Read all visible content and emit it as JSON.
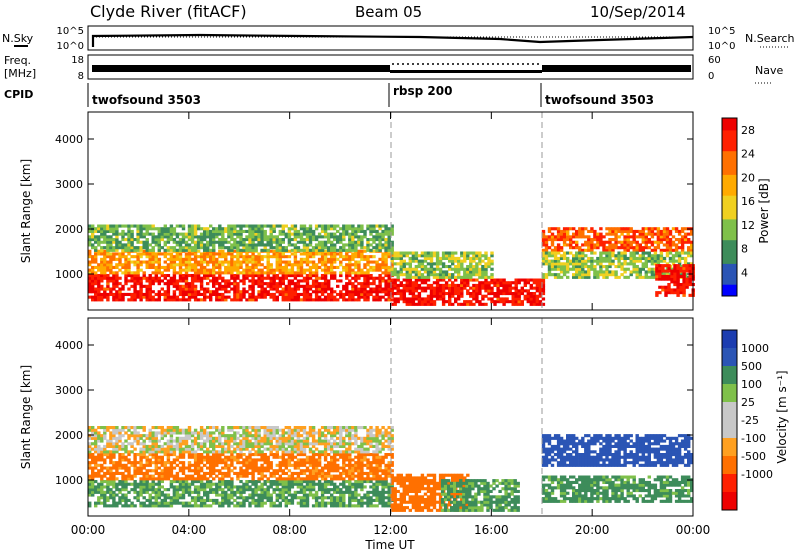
{
  "header": {
    "station": "Clyde River (fitACF)",
    "beam": "Beam 05",
    "date": "10/Sep/2014"
  },
  "labels": {
    "nsky": "N.Sky",
    "nsearch": "N.Search",
    "freq_line1": "Freq.",
    "freq_line2": "[MHz]",
    "nave": "Nave",
    "cpid": "CPID",
    "ylabel": "Slant Range [km]",
    "xlabel": "Time UT",
    "power_label": "Power [dB]",
    "velocity_label": "Velocity [m s⁻¹]"
  },
  "noise_panel": {
    "left_ticks": [
      "10^5",
      "10^0"
    ],
    "right_ticks": [
      "10^5",
      "10^0"
    ]
  },
  "freq_panel": {
    "left_ticks": [
      "18",
      "8"
    ],
    "right_ticks": [
      "60",
      "0"
    ]
  },
  "cpid_segments": [
    {
      "label": "twofsound 3503",
      "start_hour": 0
    },
    {
      "label": "rbsp 200",
      "start_hour": 12
    },
    {
      "label": "twofsound 3503",
      "start_hour": 18
    }
  ],
  "colors": {
    "power": [
      "#0000ff",
      "#2b55b5",
      "#3d8c5a",
      "#7fc04a",
      "#f0d020",
      "#ffaa00",
      "#ff7000",
      "#ff2000",
      "#ee0000"
    ],
    "velocity": [
      "#ee0000",
      "#ff2000",
      "#ff7000",
      "#ffa020",
      "#c8c8c8",
      "#c8c8c8",
      "#7fc04a",
      "#3d8c5a",
      "#2b55b5",
      "#1c3db0"
    ]
  },
  "chart_data": [
    {
      "type": "heatmap",
      "name": "Power",
      "xlabel": "Time UT",
      "ylabel": "Slant Range [km]",
      "xlim": [
        0,
        24
      ],
      "ylim": [
        200,
        4600
      ],
      "x_ticks": [
        "00:00",
        "04:00",
        "08:00",
        "12:00",
        "16:00",
        "20:00",
        "00:00"
      ],
      "y_ticks": [
        1000,
        2000,
        3000,
        4000
      ],
      "colorbar": {
        "label": "Power [dB]",
        "range": [
          0,
          30
        ],
        "ticks": [
          4,
          8,
          12,
          16,
          20,
          24,
          28
        ]
      },
      "bands": [
        {
          "t0": 0,
          "t1": 12,
          "r0": 400,
          "r1": 1000,
          "value": 28
        },
        {
          "t0": 0,
          "t1": 12,
          "r0": 1000,
          "r1": 1500,
          "value": 20
        },
        {
          "t0": 0,
          "t1": 12,
          "r0": 1500,
          "r1": 2100,
          "value": 10
        },
        {
          "t0": 12,
          "t1": 18,
          "r0": 300,
          "r1": 900,
          "value": 28
        },
        {
          "t0": 12,
          "t1": 16,
          "r0": 900,
          "r1": 1500,
          "value": 12
        },
        {
          "t0": 18,
          "t1": 24,
          "r0": 1500,
          "r1": 2000,
          "value": 24
        },
        {
          "t0": 18,
          "t1": 24,
          "r0": 900,
          "r1": 1500,
          "value": 12
        },
        {
          "t0": 22.5,
          "t1": 24,
          "r0": 500,
          "r1": 1200,
          "value": 28
        }
      ]
    },
    {
      "type": "heatmap",
      "name": "Velocity",
      "xlabel": "Time UT",
      "ylabel": "Slant Range [km]",
      "xlim": [
        0,
        24
      ],
      "ylim": [
        200,
        4600
      ],
      "x_ticks": [
        "00:00",
        "04:00",
        "08:00",
        "12:00",
        "16:00",
        "20:00",
        "00:00"
      ],
      "y_ticks": [
        1000,
        2000,
        3000,
        4000
      ],
      "colorbar": {
        "label": "Velocity [m s⁻¹]",
        "ticks": [
          1000,
          500,
          100,
          25,
          -25,
          -100,
          -500,
          -1000
        ]
      },
      "bands": [
        {
          "t0": 0,
          "t1": 12,
          "r0": 400,
          "r1": 1000,
          "value": 120
        },
        {
          "t0": 0,
          "t1": 12,
          "r0": 1000,
          "r1": 1600,
          "value": -150
        },
        {
          "t0": 0,
          "t1": 12,
          "r0": 1600,
          "r1": 2200,
          "value": 0
        },
        {
          "t0": 12,
          "t1": 15,
          "r0": 300,
          "r1": 1100,
          "value": -400
        },
        {
          "t0": 14,
          "t1": 17,
          "r0": 300,
          "r1": 1000,
          "value": 120
        },
        {
          "t0": 18,
          "t1": 24,
          "r0": 1300,
          "r1": 2000,
          "value": 800
        },
        {
          "t0": 18,
          "t1": 24,
          "r0": 500,
          "r1": 1100,
          "value": 150
        }
      ]
    }
  ]
}
